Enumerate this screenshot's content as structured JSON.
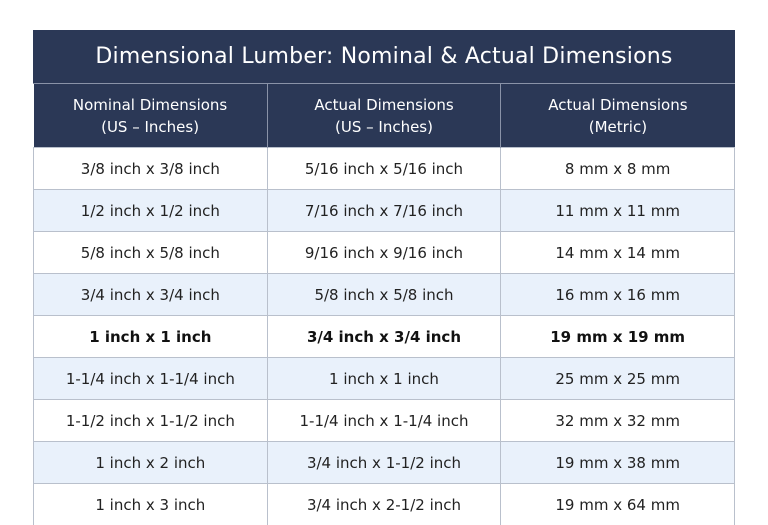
{
  "title": "Dimensional Lumber: Nominal & Actual Dimensions",
  "columns": [
    {
      "line1": "Nominal Dimensions",
      "line2": "(US – Inches)"
    },
    {
      "line1": "Actual Dimensions",
      "line2": "(US – Inches)"
    },
    {
      "line1": "Actual Dimensions",
      "line2": "(Metric)"
    }
  ],
  "rows": [
    {
      "nominal": "3/8 inch x 3/8 inch",
      "actual_us": "5/16 inch x 5/16 inch",
      "actual_metric": "8 mm x 8 mm",
      "bold": false
    },
    {
      "nominal": "1/2 inch x 1/2 inch",
      "actual_us": "7/16 inch x 7/16 inch",
      "actual_metric": "11 mm x 11 mm",
      "bold": false
    },
    {
      "nominal": "5/8 inch x 5/8 inch",
      "actual_us": "9/16 inch x 9/16 inch",
      "actual_metric": "14 mm x 14 mm",
      "bold": false
    },
    {
      "nominal": "3/4 inch x 3/4 inch",
      "actual_us": "5/8 inch x 5/8 inch",
      "actual_metric": "16 mm x 16 mm",
      "bold": false
    },
    {
      "nominal": "1 inch x 1 inch",
      "actual_us": "3/4 inch x 3/4 inch",
      "actual_metric": "19 mm x 19 mm",
      "bold": true
    },
    {
      "nominal": "1-1/4 inch x 1-1/4 inch",
      "actual_us": "1 inch x 1 inch",
      "actual_metric": "25 mm x 25 mm",
      "bold": false
    },
    {
      "nominal": "1-1/2 inch x 1-1/2 inch",
      "actual_us": "1-1/4 inch x 1-1/4 inch",
      "actual_metric": "32 mm x 32 mm",
      "bold": false
    },
    {
      "nominal": "1 inch x 2 inch",
      "actual_us": "3/4 inch x 1-1/2 inch",
      "actual_metric": "19 mm x 38 mm",
      "bold": false
    },
    {
      "nominal": "1 inch x 3 inch",
      "actual_us": "3/4 inch x 2-1/2 inch",
      "actual_metric": "19 mm x 64 mm",
      "bold": false
    }
  ]
}
